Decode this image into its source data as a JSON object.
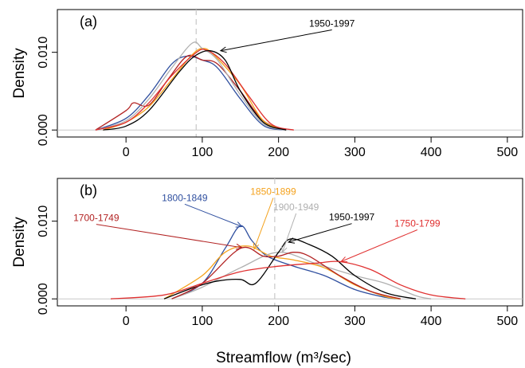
{
  "chart_data": [
    {
      "type": "line",
      "panel_label": "(a)",
      "xlabel": "",
      "ylabel": "Density",
      "xlim": [
        -90,
        520
      ],
      "ylim": [
        -0.0009,
        0.0155
      ],
      "x_ticks": [
        0,
        100,
        200,
        300,
        400,
        500
      ],
      "y_ticks": [
        0.0,
        0.01
      ],
      "y_tick_labels": [
        "0.000",
        "0.010"
      ],
      "grid": false,
      "reference_line": {
        "x": 92,
        "style": "dashed",
        "color": "#c8c8c8"
      },
      "baseline": {
        "y": 0,
        "color": "#c8c8c8"
      },
      "series": [
        {
          "color": "#2f4f9f",
          "x": [
            -40,
            0,
            30,
            60,
            80,
            100,
            120,
            150,
            180,
            210
          ],
          "y": [
            0,
            0.0015,
            0.0045,
            0.0085,
            0.0095,
            0.009,
            0.008,
            0.004,
            0.0006,
            0
          ]
        },
        {
          "color": "#b22222",
          "x": [
            -40,
            0,
            10,
            30,
            55,
            80,
            100,
            120,
            150,
            180,
            210
          ],
          "y": [
            0,
            0.0025,
            0.0035,
            0.0032,
            0.0065,
            0.0095,
            0.009,
            0.0085,
            0.005,
            0.0012,
            0
          ]
        },
        {
          "color": "#f4a21d",
          "x": [
            -30,
            0,
            30,
            60,
            85,
            100,
            115,
            150,
            180,
            210
          ],
          "y": [
            0,
            0.001,
            0.003,
            0.0065,
            0.0095,
            0.0105,
            0.0097,
            0.0058,
            0.0012,
            0
          ]
        },
        {
          "color": "#b0b0b0",
          "x": [
            -40,
            0,
            30,
            60,
            87,
            100,
            120,
            150,
            180,
            210
          ],
          "y": [
            0,
            0.0012,
            0.004,
            0.008,
            0.0112,
            0.0105,
            0.009,
            0.0045,
            0.0008,
            0
          ]
        },
        {
          "color": "#e03030",
          "x": [
            -40,
            0,
            30,
            60,
            90,
            105,
            130,
            160,
            190,
            220
          ],
          "y": [
            0,
            0.001,
            0.0035,
            0.007,
            0.0098,
            0.0103,
            0.0085,
            0.0045,
            0.0008,
            0
          ]
        },
        {
          "label": "1950-1997",
          "color": "#000000",
          "x": [
            -30,
            0,
            30,
            70,
            90,
            110,
            130,
            150,
            180,
            210
          ],
          "y": [
            0,
            0.0005,
            0.0025,
            0.0075,
            0.0095,
            0.0102,
            0.009,
            0.005,
            0.001,
            0
          ]
        }
      ],
      "annotations": [
        {
          "text": "1950-1997",
          "color": "#000000",
          "text_x": 270,
          "text_y": 0.0133,
          "arrow_x": 124,
          "arrow_y": 0.0102
        }
      ]
    },
    {
      "type": "line",
      "panel_label": "(b)",
      "xlabel": "Streamflow (m³/sec)",
      "ylabel": "Density",
      "xlim": [
        -90,
        520
      ],
      "ylim": [
        -0.0009,
        0.0155
      ],
      "x_ticks": [
        0,
        100,
        200,
        300,
        400,
        500
      ],
      "y_ticks": [
        0.0,
        0.01
      ],
      "y_tick_labels": [
        "0.000",
        "0.010"
      ],
      "grid": false,
      "reference_line": {
        "x": 195,
        "style": "dashed",
        "color": "#c8c8c8"
      },
      "baseline": {
        "y": 0,
        "color": "#c8c8c8"
      },
      "series": [
        {
          "label": "1800-1849",
          "color": "#2f4f9f",
          "x": [
            60,
            100,
            130,
            150,
            165,
            185,
            220,
            260,
            300,
            340,
            360
          ],
          "y": [
            0,
            0.002,
            0.0065,
            0.0094,
            0.0075,
            0.0055,
            0.0042,
            0.003,
            0.0012,
            0.0002,
            0
          ]
        },
        {
          "label": "1850-1899",
          "color": "#f4a21d",
          "x": [
            50,
            100,
            130,
            160,
            190,
            220,
            260,
            300,
            340,
            360
          ],
          "y": [
            0,
            0.003,
            0.006,
            0.0068,
            0.0055,
            0.005,
            0.004,
            0.0018,
            0.0003,
            0
          ]
        },
        {
          "label": "1900-1949",
          "color": "#b0b0b0",
          "x": [
            60,
            100,
            150,
            200,
            250,
            300,
            340,
            380,
            400
          ],
          "y": [
            0,
            0.0015,
            0.004,
            0.006,
            0.0045,
            0.003,
            0.002,
            0.0004,
            0
          ]
        },
        {
          "label": "1950-1997",
          "color": "#000000",
          "x": [
            50,
            90,
            120,
            150,
            170,
            200,
            215,
            240,
            270,
            300,
            340,
            380
          ],
          "y": [
            0,
            0.0015,
            0.0023,
            0.0025,
            0.002,
            0.006,
            0.0077,
            0.007,
            0.0055,
            0.003,
            0.0008,
            0
          ]
        },
        {
          "label": "1700-1749",
          "color": "#b22222",
          "x": [
            60,
            100,
            150,
            180,
            200,
            220,
            240,
            280,
            320,
            360
          ],
          "y": [
            0,
            0.002,
            0.0065,
            0.0055,
            0.0055,
            0.006,
            0.0055,
            0.003,
            0.001,
            0
          ]
        },
        {
          "label": "1750-1799",
          "color": "#e03030",
          "x": [
            -20,
            50,
            100,
            150,
            200,
            250,
            280,
            320,
            360,
            400,
            445
          ],
          "y": [
            0,
            0.0005,
            0.002,
            0.0035,
            0.0042,
            0.0046,
            0.0048,
            0.0038,
            0.0018,
            0.0005,
            0
          ]
        }
      ],
      "annotations": [
        {
          "text": "1800-1849",
          "color": "#2f4f9f",
          "text_x": 77,
          "text_y": 0.0126,
          "arrow_x": 152,
          "arrow_y": 0.0093
        },
        {
          "text": "1850-1899",
          "color": "#f4a21d",
          "text_x": 193,
          "text_y": 0.0134,
          "arrow_x": 168,
          "arrow_y": 0.0064
        },
        {
          "text": "1900-1949",
          "color": "#b0b0b0",
          "text_x": 223,
          "text_y": 0.0114,
          "arrow_x": 205,
          "arrow_y": 0.006
        },
        {
          "text": "1950-1997",
          "color": "#000000",
          "text_x": 296,
          "text_y": 0.0101,
          "arrow_x": 213,
          "arrow_y": 0.0073
        },
        {
          "text": "1700-1749",
          "color": "#b22222",
          "text_x": -39,
          "text_y": 0.01,
          "arrow_x": 152,
          "arrow_y": 0.0066
        },
        {
          "text": "1750-1799",
          "color": "#e03030",
          "text_x": 382,
          "text_y": 0.0093,
          "arrow_x": 282,
          "arrow_y": 0.0048
        }
      ]
    }
  ]
}
